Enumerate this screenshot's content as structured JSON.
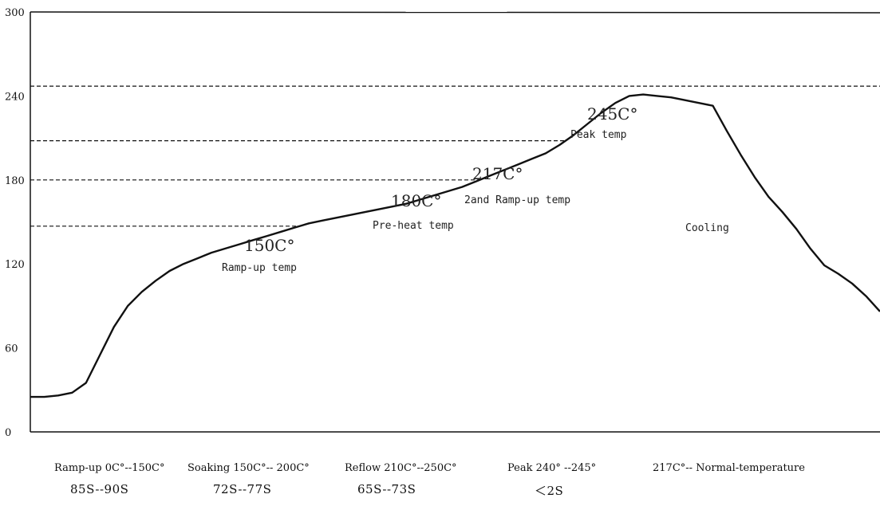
{
  "chart_data": {
    "type": "line",
    "title": "",
    "xlabel": "",
    "ylabel": "",
    "ylim": [
      0,
      300
    ],
    "yticks": [
      "300",
      "240",
      "180",
      "120",
      "60",
      "0"
    ],
    "grid": false,
    "series": [
      {
        "values": [
          25,
          25,
          26,
          28,
          35,
          55,
          75,
          90,
          100,
          108,
          115,
          120,
          124,
          128,
          131,
          134,
          137,
          140,
          143,
          146,
          149,
          151,
          153,
          155,
          157,
          159,
          161,
          163,
          166,
          169,
          172,
          175,
          179,
          183,
          187,
          191,
          195,
          199,
          205,
          212,
          220,
          228,
          235,
          240,
          241,
          240,
          239,
          237,
          235,
          233,
          215,
          198,
          182,
          168,
          157,
          145,
          131,
          119,
          113,
          106,
          97,
          86
        ]
      }
    ],
    "reference_levels": [
      {
        "y": 247
      },
      {
        "y": 208
      },
      {
        "y": 180
      },
      {
        "y": 147
      }
    ],
    "annotations": [
      {
        "id": "peak",
        "temp": "245C°",
        "text": "Peak temp"
      },
      {
        "id": "ramp2",
        "temp": "217C°",
        "text": "2and Ramp-up temp"
      },
      {
        "id": "preheat",
        "temp": "180C°",
        "text": "Pre-heat temp"
      },
      {
        "id": "ramp1",
        "temp": "150C°",
        "text": "Ramp-up temp"
      },
      {
        "id": "cooling",
        "temp": "",
        "text": "Cooling"
      }
    ]
  },
  "stages": [
    {
      "label": "Ramp-up 0C°--150C°",
      "time": "85S--90S"
    },
    {
      "label": "Soaking 150C°-- 200C°",
      "time": "72S--77S"
    },
    {
      "label": "Reflow 210C°--250C°",
      "time": "65S--73S"
    },
    {
      "label": "Peak 240° --245°",
      "time": "＜2S"
    },
    {
      "label": "217C°-- Normal-temperature",
      "time": ""
    }
  ]
}
